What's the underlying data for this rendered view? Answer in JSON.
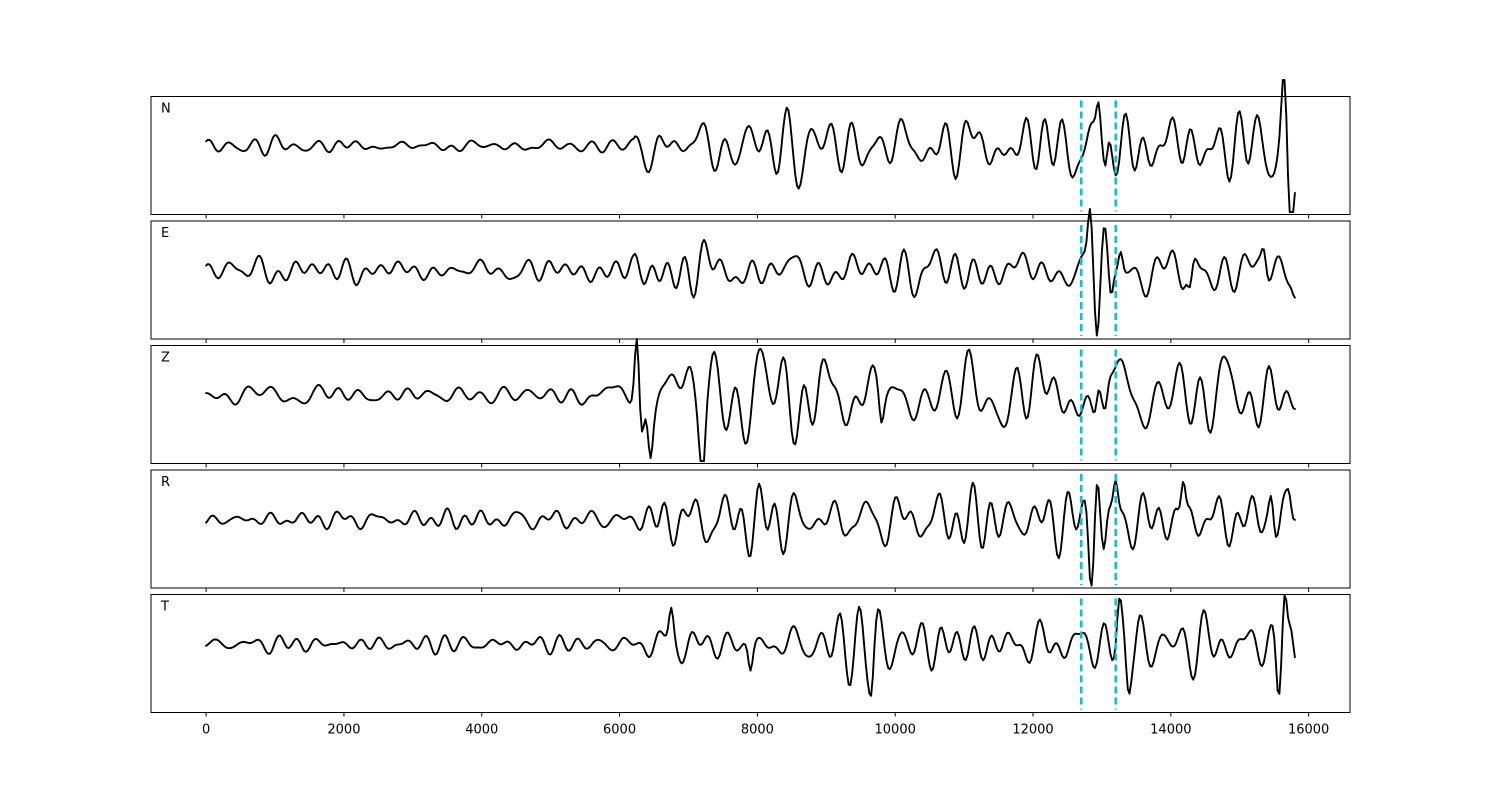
{
  "chart_data": {
    "type": "line",
    "title": "",
    "xlabel": "",
    "ylabel": "",
    "xlim": [
      -800,
      16600
    ],
    "xticks": [
      0,
      2000,
      4000,
      6000,
      8000,
      10000,
      12000,
      14000,
      16000
    ],
    "xtick_labels": [
      "0",
      "2000",
      "4000",
      "6000",
      "8000",
      "10000",
      "12000",
      "14000",
      "16000"
    ],
    "x_range": [
      0,
      15800
    ],
    "grid": false,
    "legend": "none",
    "colors": {
      "trace": "#000000",
      "marker": "#17becf"
    },
    "markers": [
      12700,
      13200
    ],
    "panels": [
      {
        "label": "N",
        "onset": 6200,
        "amp_noise": 0.07,
        "amp_signal": 0.3,
        "peaks": [
          [
            12950,
            0.35
          ],
          [
            13050,
            -0.3
          ],
          [
            15640,
            0.38
          ],
          [
            15720,
            -0.55
          ],
          [
            15780,
            -0.3
          ],
          [
            15800,
            0.15
          ]
        ]
      },
      {
        "label": "E",
        "onset": 6200,
        "amp_noise": 0.09,
        "amp_signal": 0.18,
        "peaks": [
          [
            12830,
            0.48
          ],
          [
            12930,
            -0.45
          ],
          [
            13030,
            0.28
          ],
          [
            13130,
            -0.32
          ],
          [
            13270,
            0.2
          ],
          [
            14280,
            -0.22
          ],
          [
            15350,
            0.18
          ],
          [
            15800,
            -0.12
          ]
        ]
      },
      {
        "label": "Z",
        "onset": 6200,
        "amp_noise": 0.07,
        "amp_signal": 0.32,
        "peaks": [
          [
            6250,
            0.55
          ],
          [
            6320,
            -0.32
          ],
          [
            6450,
            -0.3
          ],
          [
            7200,
            -0.42
          ],
          [
            9800,
            -0.22
          ],
          [
            12950,
            0.24
          ],
          [
            13050,
            -0.2
          ]
        ]
      },
      {
        "label": "R",
        "onset": 6200,
        "amp_noise": 0.08,
        "amp_signal": 0.2,
        "peaks": [
          [
            12840,
            -0.48
          ],
          [
            12930,
            0.5
          ],
          [
            13030,
            -0.3
          ],
          [
            13200,
            0.26
          ],
          [
            14180,
            0.33
          ],
          [
            15460,
            0.26
          ],
          [
            15720,
            0.14
          ]
        ]
      },
      {
        "label": "T",
        "onset": 6200,
        "amp_noise": 0.07,
        "amp_signal": 0.22,
        "peaks": [
          [
            6750,
            0.25
          ],
          [
            7900,
            -0.22
          ],
          [
            9660,
            -0.25
          ],
          [
            13250,
            0.26
          ],
          [
            13380,
            -0.25
          ],
          [
            15650,
            0.52
          ],
          [
            15560,
            -0.35
          ],
          [
            15800,
            -0.22
          ]
        ]
      }
    ]
  }
}
